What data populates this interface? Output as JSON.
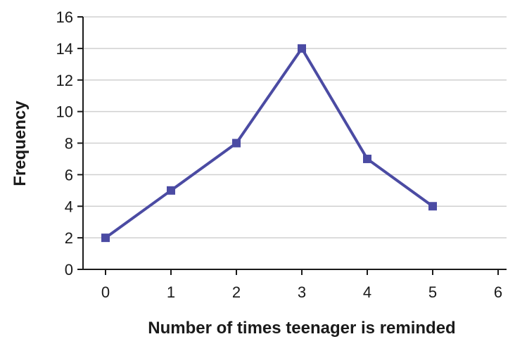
{
  "chart_data": {
    "type": "line",
    "title": "",
    "xlabel": "Number of times teenager is reminded",
    "ylabel": "Frequency",
    "xlim": [
      -0.3,
      6
    ],
    "ylim": [
      0,
      16
    ],
    "x_ticks": [
      0,
      1,
      2,
      3,
      4,
      5,
      6
    ],
    "y_ticks": [
      0,
      2,
      4,
      6,
      8,
      10,
      12,
      14,
      16
    ],
    "grid": "horizontal",
    "marker": "square",
    "line_color": "#4b4ba3",
    "series": [
      {
        "x": [
          0,
          1,
          2,
          3,
          4,
          5
        ],
        "values": [
          2,
          5,
          8,
          14,
          7,
          4
        ]
      }
    ]
  }
}
